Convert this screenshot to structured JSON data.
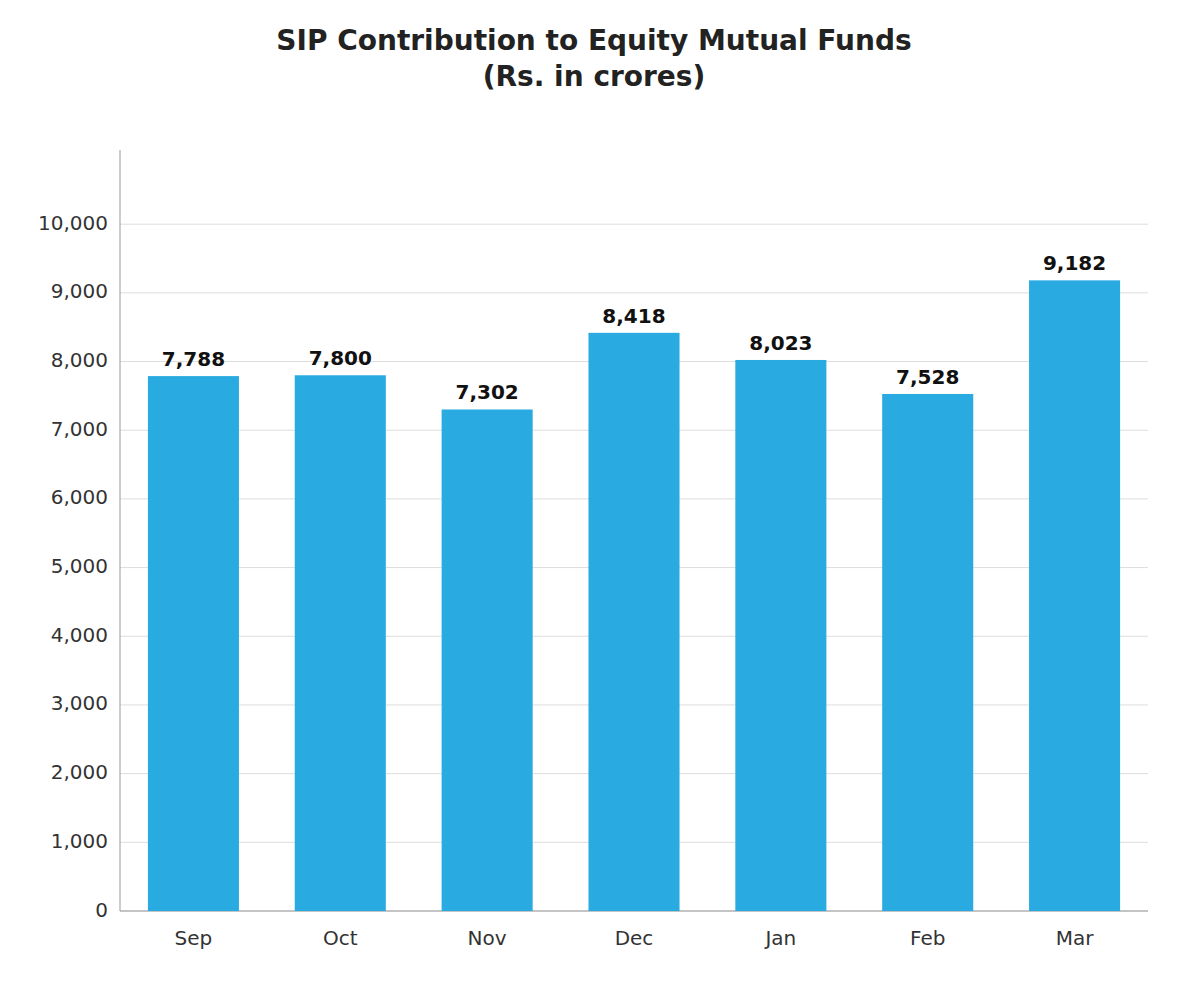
{
  "chart_data": {
    "type": "bar",
    "title": "SIP Contribution to Equity Mutual Funds\n(Rs. in crores)",
    "categories": [
      "Sep",
      "Oct",
      "Nov",
      "Dec",
      "Jan",
      "Feb",
      "Mar"
    ],
    "values": [
      7788,
      7800,
      7302,
      8418,
      8023,
      7528,
      9182
    ],
    "value_labels": [
      "7,788",
      "7,800",
      "7,302",
      "8,418",
      "8,023",
      "7,528",
      "9,182"
    ],
    "data_labels": true,
    "color": "#29ABE2",
    "ylim": [
      0,
      11080
    ],
    "yticks": [
      0,
      {
        "value": 1000,
        "label": "1,000"
      },
      {
        "value": 2000,
        "label": "2,000"
      },
      {
        "value": 3000,
        "label": "3,000"
      },
      {
        "value": 4000,
        "label": "4,000"
      },
      {
        "value": 5000,
        "label": "5,000"
      },
      {
        "value": 6000,
        "label": "6,000"
      },
      {
        "value": 7000,
        "label": "7,000"
      },
      {
        "value": 8000,
        "label": "8,000"
      },
      {
        "value": 9000,
        "label": "9,000"
      },
      {
        "value": 10000,
        "label": "10,000"
      }
    ],
    "grid": true
  }
}
